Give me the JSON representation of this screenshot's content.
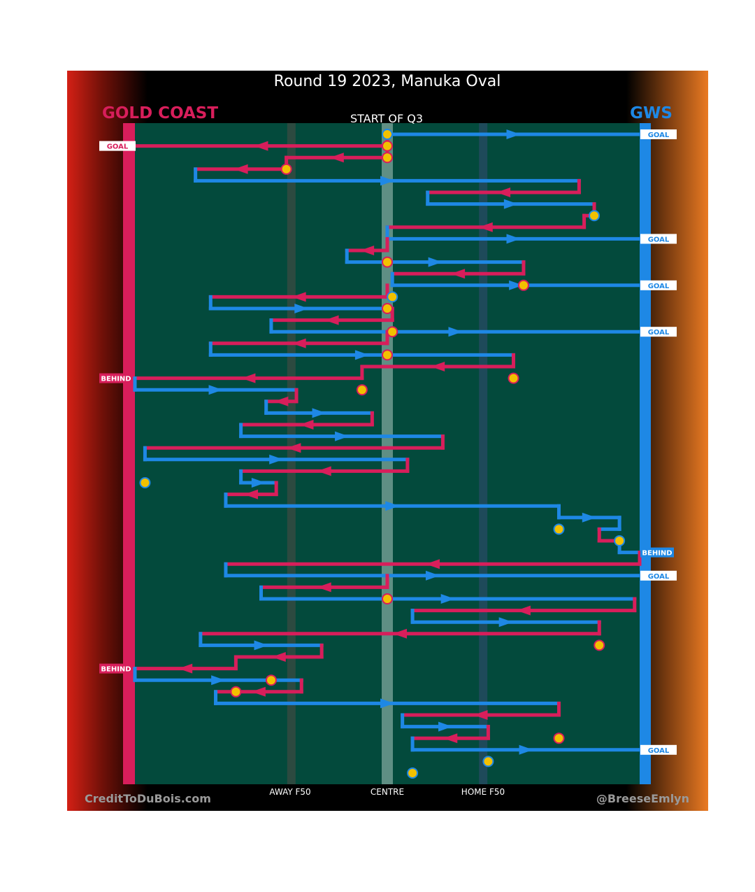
{
  "title": "Round 19 2023, Manuka Oval",
  "subtitle": "START OF Q3",
  "teams": {
    "left": {
      "name": "GOLD COAST",
      "color": "#d81e5b"
    },
    "right": {
      "name": "GWS",
      "color": "#1e88e5"
    }
  },
  "field_labels": [
    "AWAY F50",
    "CENTRE",
    "HOME F50"
  ],
  "credits": {
    "left": "CreditToDuBois.com",
    "right": "@BreeseEmlyn"
  },
  "colors": {
    "field": "#034a3c",
    "gold_coast": "#d81e5b",
    "gws": "#1e88e5",
    "marker": "#f2c100",
    "background_left": "#d42015",
    "background_right": "#ea7a22"
  },
  "chains": [
    {
      "team": "gws",
      "from": 0.5,
      "to": 1.0,
      "outcome": "GOAL"
    },
    {
      "team": "gc",
      "from": 0.5,
      "to": 0.0,
      "outcome": "GOAL"
    },
    {
      "team": "gc",
      "from": 0.5,
      "to": 0.3
    },
    {
      "team": "gc",
      "from": 0.3,
      "to": 0.12
    },
    {
      "team": "gws",
      "from": 0.12,
      "to": 0.88
    },
    {
      "team": "gc",
      "from": 0.88,
      "to": 0.58
    },
    {
      "team": "gws",
      "from": 0.58,
      "to": 0.91
    },
    {
      "team": "gc",
      "from": 0.91,
      "to": 0.89
    },
    {
      "team": "gc",
      "from": 0.89,
      "to": 0.5
    },
    {
      "team": "gws",
      "from": 0.5,
      "to": 1.0,
      "outcome": "GOAL"
    },
    {
      "team": "gc",
      "from": 0.5,
      "to": 0.42
    },
    {
      "team": "gws",
      "from": 0.42,
      "to": 0.77
    },
    {
      "team": "gc",
      "from": 0.77,
      "to": 0.51
    },
    {
      "team": "gws",
      "from": 0.51,
      "to": 1.0,
      "outcome": "GOAL"
    },
    {
      "team": "gc",
      "from": 0.5,
      "to": 0.15
    },
    {
      "team": "gws",
      "from": 0.15,
      "to": 0.51
    },
    {
      "team": "gc",
      "from": 0.51,
      "to": 0.27
    },
    {
      "team": "gws",
      "from": 0.27,
      "to": 1.0,
      "outcome": "GOAL"
    },
    {
      "team": "gc",
      "from": 0.5,
      "to": 0.15
    },
    {
      "team": "gws",
      "from": 0.15,
      "to": 0.75
    },
    {
      "team": "gc",
      "from": 0.75,
      "to": 0.45
    },
    {
      "team": "gc",
      "from": 0.45,
      "to": 0.0,
      "outcome": "BEHIND"
    },
    {
      "team": "gws",
      "from": 0.0,
      "to": 0.32
    },
    {
      "team": "gc",
      "from": 0.32,
      "to": 0.26
    },
    {
      "team": "gws",
      "from": 0.26,
      "to": 0.47
    },
    {
      "team": "gc",
      "from": 0.47,
      "to": 0.21
    },
    {
      "team": "gws",
      "from": 0.21,
      "to": 0.61
    },
    {
      "team": "gc",
      "from": 0.61,
      "to": 0.02
    },
    {
      "team": "gws",
      "from": 0.02,
      "to": 0.54
    },
    {
      "team": "gc",
      "from": 0.54,
      "to": 0.21
    },
    {
      "team": "gws",
      "from": 0.21,
      "to": 0.28
    },
    {
      "team": "gc",
      "from": 0.28,
      "to": 0.18
    },
    {
      "team": "gws",
      "from": 0.18,
      "to": 0.84
    },
    {
      "team": "gws",
      "from": 0.84,
      "to": 0.96
    },
    {
      "team": "gws",
      "from": 0.96,
      "to": 0.92
    },
    {
      "team": "gc",
      "from": 0.92,
      "to": 0.96
    },
    {
      "team": "gws",
      "from": 0.96,
      "to": 1.0,
      "outcome": "BEHIND"
    },
    {
      "team": "gc",
      "from": 1.0,
      "to": 0.18
    },
    {
      "team": "gws",
      "from": 0.18,
      "to": 1.0,
      "outcome": "GOAL"
    },
    {
      "team": "gc",
      "from": 0.5,
      "to": 0.25
    },
    {
      "team": "gws",
      "from": 0.25,
      "to": 0.99
    },
    {
      "team": "gc",
      "from": 0.99,
      "to": 0.55
    },
    {
      "team": "gws",
      "from": 0.55,
      "to": 0.92
    },
    {
      "team": "gc",
      "from": 0.92,
      "to": 0.13
    },
    {
      "team": "gws",
      "from": 0.13,
      "to": 0.37
    },
    {
      "team": "gc",
      "from": 0.37,
      "to": 0.2
    },
    {
      "team": "gc",
      "from": 0.2,
      "to": 0.0,
      "outcome": "BEHIND"
    },
    {
      "team": "gws",
      "from": 0.0,
      "to": 0.33
    },
    {
      "team": "gc",
      "from": 0.33,
      "to": 0.16
    },
    {
      "team": "gws",
      "from": 0.16,
      "to": 0.84
    },
    {
      "team": "gc",
      "from": 0.84,
      "to": 0.53
    },
    {
      "team": "gws",
      "from": 0.53,
      "to": 0.7
    },
    {
      "team": "gc",
      "from": 0.7,
      "to": 0.55
    },
    {
      "team": "gws",
      "from": 0.55,
      "to": 1.0,
      "outcome": "GOAL"
    }
  ],
  "markers": [
    {
      "row": 0,
      "x": 0.5,
      "team": "gws"
    },
    {
      "row": 1,
      "x": 0.5,
      "team": "gc"
    },
    {
      "row": 2,
      "x": 0.5,
      "team": "gc"
    },
    {
      "row": 3,
      "x": 0.3,
      "team": "gc"
    },
    {
      "row": 7,
      "x": 0.91,
      "team": "gws"
    },
    {
      "row": 11,
      "x": 0.5,
      "team": "gc"
    },
    {
      "row": 13,
      "x": 0.77,
      "team": "gc"
    },
    {
      "row": 14,
      "x": 0.51,
      "team": "gws"
    },
    {
      "row": 15,
      "x": 0.5,
      "team": "gc"
    },
    {
      "row": 17,
      "x": 0.51,
      "team": "gc"
    },
    {
      "row": 19,
      "x": 0.5,
      "team": "gc"
    },
    {
      "row": 21,
      "x": 0.75,
      "team": "gc"
    },
    {
      "row": 22,
      "x": 0.45,
      "team": "gc"
    },
    {
      "row": 30,
      "x": 0.02,
      "team": "gws"
    },
    {
      "row": 34,
      "x": 0.84,
      "team": "gws"
    },
    {
      "row": 35,
      "x": 0.96,
      "team": "gws"
    },
    {
      "row": 40,
      "x": 0.5,
      "team": "gc"
    },
    {
      "row": 44,
      "x": 0.92,
      "team": "gc"
    },
    {
      "row": 47,
      "x": 0.27,
      "team": "gc"
    },
    {
      "row": 48,
      "x": 0.2,
      "team": "gc"
    },
    {
      "row": 52,
      "x": 0.84,
      "team": "gc"
    },
    {
      "row": 54,
      "x": 0.7,
      "team": "gws"
    },
    {
      "row": 55,
      "x": 0.55,
      "team": "gws"
    }
  ]
}
